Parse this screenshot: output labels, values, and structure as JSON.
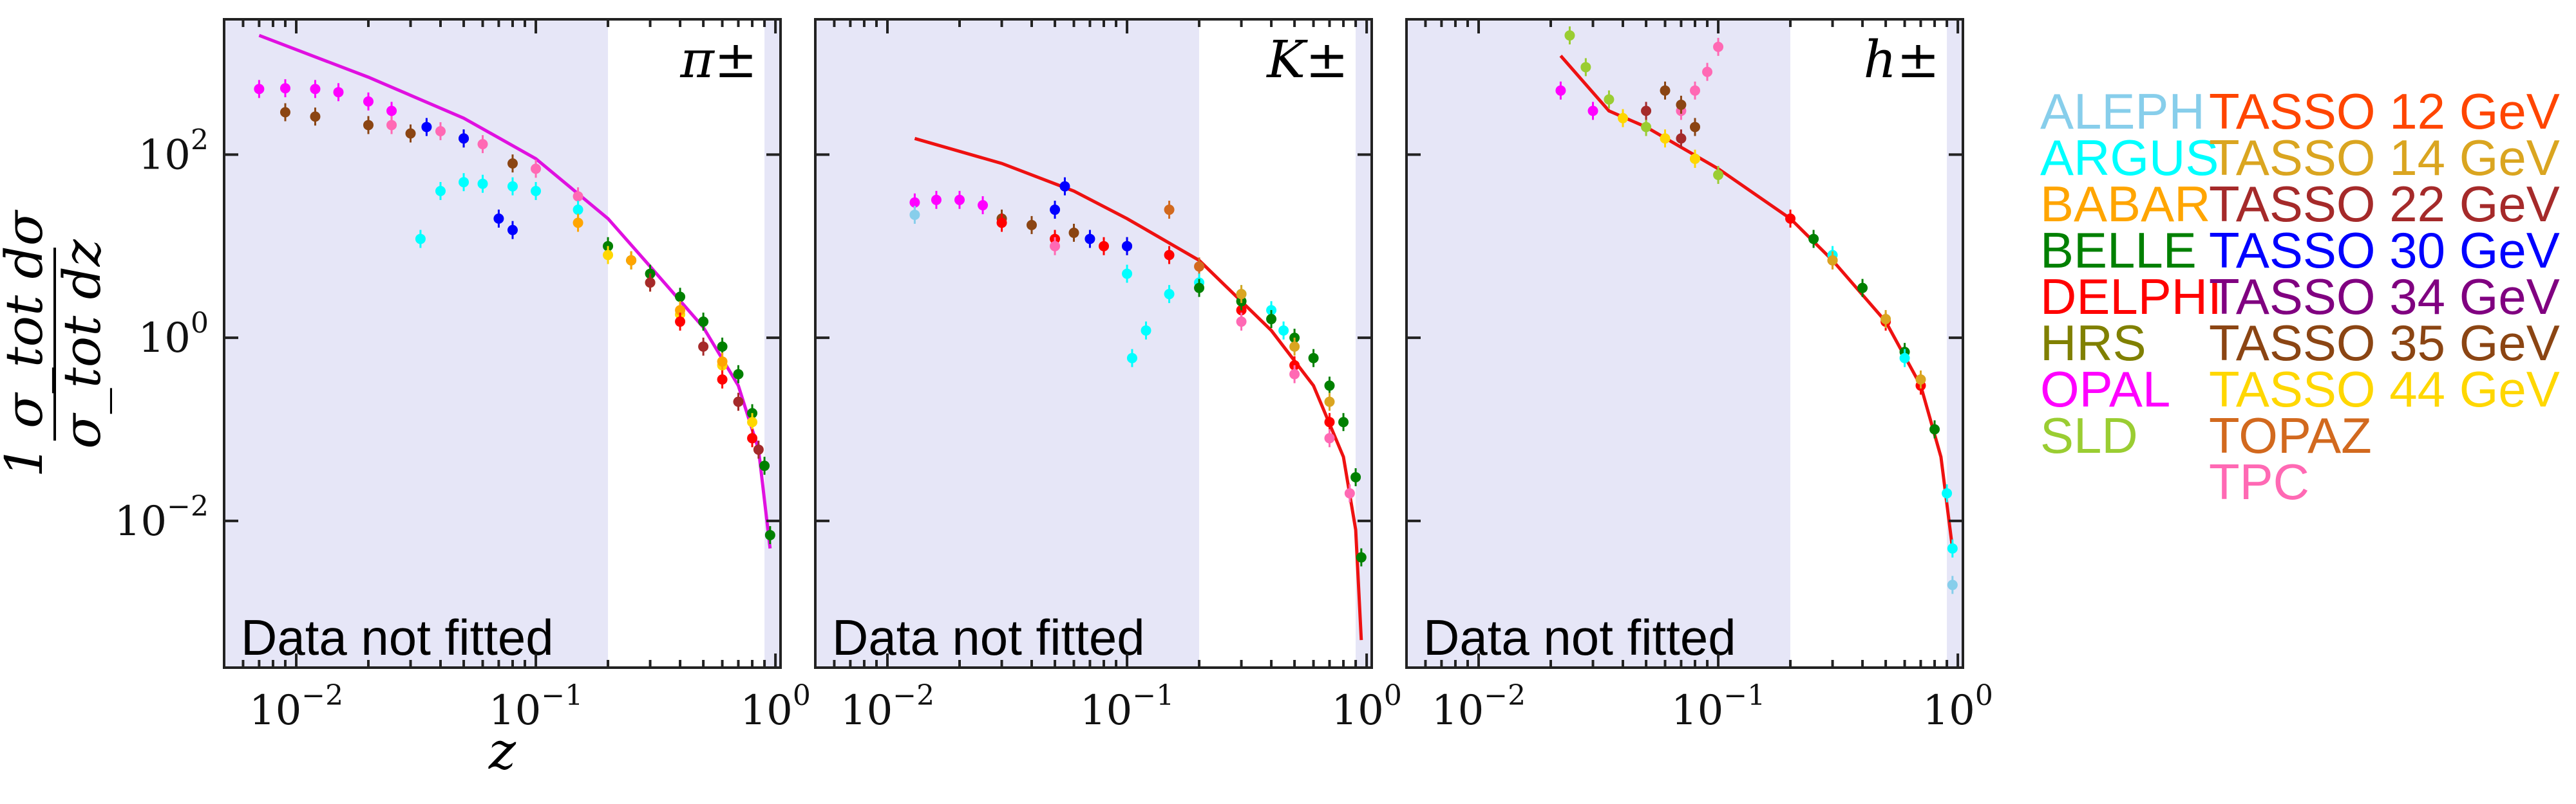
{
  "chart_data": {
    "type": "scatter",
    "x_scale": "log",
    "y_scale": "log",
    "xlim": [
      0.005,
      1.05
    ],
    "ylim": [
      0.00025,
      3000
    ],
    "xlabel": "z",
    "ylabel": "1/σ_tot dσ/dz",
    "x_ticks": [
      {
        "value": 0.01,
        "base": "10",
        "exp": "−2"
      },
      {
        "value": 0.1,
        "base": "10",
        "exp": "−1"
      },
      {
        "value": 1,
        "base": "10",
        "exp": "0"
      }
    ],
    "y_ticks": [
      {
        "value": 100,
        "base": "10",
        "exp": "2"
      },
      {
        "value": 1,
        "base": "10",
        "exp": "0"
      },
      {
        "value": 0.01,
        "base": "10",
        "exp": "−2"
      }
    ],
    "unfitted_region_note": "Data not fitted",
    "unfitted_ranges": [
      [
        0.005,
        0.2
      ],
      [
        0.9,
        1.05
      ]
    ],
    "panels": [
      {
        "name": "π±",
        "fit_curve": [
          [
            0.007,
            2000
          ],
          [
            0.02,
            700
          ],
          [
            0.05,
            250
          ],
          [
            0.1,
            90
          ],
          [
            0.2,
            20
          ],
          [
            0.3,
            6
          ],
          [
            0.5,
            1.3
          ],
          [
            0.7,
            0.3
          ],
          [
            0.85,
            0.06
          ],
          [
            0.95,
            0.005
          ]
        ],
        "series": [
          {
            "name": "OPAL",
            "points": [
              [
                0.007,
                520
              ],
              [
                0.009,
                530
              ],
              [
                0.012,
                520
              ],
              [
                0.015,
                480
              ],
              [
                0.02,
                380
              ],
              [
                0.025,
                300
              ]
            ]
          },
          {
            "name": "TASSO 35 GeV",
            "points": [
              [
                0.009,
                290
              ],
              [
                0.012,
                260
              ],
              [
                0.02,
                210
              ],
              [
                0.03,
                170
              ],
              [
                0.05,
                150
              ],
              [
                0.08,
                80
              ]
            ]
          },
          {
            "name": "TPC",
            "points": [
              [
                0.025,
                210
              ],
              [
                0.04,
                180
              ],
              [
                0.06,
                130
              ],
              [
                0.1,
                70
              ],
              [
                0.15,
                35
              ]
            ]
          },
          {
            "name": "ARGUS",
            "points": [
              [
                0.033,
                12
              ],
              [
                0.04,
                40
              ],
              [
                0.05,
                50
              ],
              [
                0.06,
                48
              ],
              [
                0.08,
                45
              ],
              [
                0.1,
                40
              ],
              [
                0.15,
                25
              ]
            ]
          },
          {
            "name": "TASSO 30 GeV",
            "points": [
              [
                0.035,
                200
              ],
              [
                0.05,
                150
              ],
              [
                0.07,
                20
              ],
              [
                0.08,
                15
              ]
            ]
          },
          {
            "name": "BELLE",
            "points": [
              [
                0.2,
                10
              ],
              [
                0.25,
                7
              ],
              [
                0.3,
                5
              ],
              [
                0.4,
                2.8
              ],
              [
                0.5,
                1.5
              ],
              [
                0.6,
                0.8
              ],
              [
                0.7,
                0.4
              ],
              [
                0.8,
                0.15
              ],
              [
                0.9,
                0.04
              ],
              [
                0.95,
                0.007
              ]
            ]
          },
          {
            "name": "TASSO 44 GeV",
            "points": [
              [
                0.2,
                8
              ],
              [
                0.3,
                4
              ],
              [
                0.4,
                1.8
              ],
              [
                0.6,
                0.5
              ],
              [
                0.8,
                0.12
              ]
            ]
          },
          {
            "name": "BABAR",
            "points": [
              [
                0.15,
                18
              ],
              [
                0.25,
                7
              ],
              [
                0.4,
                2
              ],
              [
                0.6,
                0.55
              ]
            ]
          },
          {
            "name": "TASSO 22 GeV",
            "points": [
              [
                0.3,
                4
              ],
              [
                0.5,
                0.8
              ],
              [
                0.7,
                0.2
              ],
              [
                0.85,
                0.06
              ]
            ]
          },
          {
            "name": "DELPHI",
            "points": [
              [
                0.4,
                1.5
              ],
              [
                0.6,
                0.35
              ],
              [
                0.8,
                0.08
              ]
            ]
          }
        ]
      },
      {
        "name": "K±",
        "fit_curve": [
          [
            0.013,
            150
          ],
          [
            0.03,
            80
          ],
          [
            0.06,
            40
          ],
          [
            0.1,
            20
          ],
          [
            0.2,
            7
          ],
          [
            0.4,
            1.2
          ],
          [
            0.6,
            0.3
          ],
          [
            0.8,
            0.05
          ],
          [
            0.9,
            0.008
          ],
          [
            0.95,
            0.0005
          ]
        ],
        "series": [
          {
            "name": "OPAL",
            "points": [
              [
                0.013,
                30
              ],
              [
                0.016,
                32
              ],
              [
                0.02,
                32
              ],
              [
                0.025,
                28
              ]
            ]
          },
          {
            "name": "ALEPH",
            "points": [
              [
                0.013,
                22
              ]
            ]
          },
          {
            "name": "TASSO 35 GeV",
            "points": [
              [
                0.03,
                20
              ],
              [
                0.04,
                17
              ],
              [
                0.06,
                14
              ],
              [
                0.1,
                10
              ]
            ]
          },
          {
            "name": "TASSO 30 GeV",
            "points": [
              [
                0.05,
                25
              ],
              [
                0.055,
                45
              ],
              [
                0.07,
                12
              ],
              [
                0.1,
                10
              ]
            ]
          },
          {
            "name": "DELPHI",
            "points": [
              [
                0.03,
                18
              ],
              [
                0.05,
                12
              ],
              [
                0.08,
                10
              ],
              [
                0.15,
                8
              ],
              [
                0.3,
                2
              ],
              [
                0.5,
                0.5
              ],
              [
                0.7,
                0.12
              ]
            ]
          },
          {
            "name": "TOPAZ",
            "points": [
              [
                0.15,
                25
              ],
              [
                0.2,
                6
              ]
            ]
          },
          {
            "name": "ARGUS",
            "points": [
              [
                0.1,
                5
              ],
              [
                0.105,
                0.6
              ],
              [
                0.12,
                1.2
              ],
              [
                0.15,
                3
              ],
              [
                0.2,
                4
              ],
              [
                0.3,
                3
              ],
              [
                0.4,
                2
              ],
              [
                0.45,
                1.2
              ]
            ]
          },
          {
            "name": "BELLE",
            "points": [
              [
                0.2,
                3.5
              ],
              [
                0.3,
                2.5
              ],
              [
                0.4,
                1.6
              ],
              [
                0.5,
                1
              ],
              [
                0.6,
                0.6
              ],
              [
                0.7,
                0.3
              ],
              [
                0.8,
                0.12
              ],
              [
                0.9,
                0.03
              ],
              [
                0.95,
                0.004
              ]
            ]
          },
          {
            "name": "TPC",
            "points": [
              [
                0.05,
                10
              ],
              [
                0.3,
                1.5
              ],
              [
                0.5,
                0.4
              ],
              [
                0.7,
                0.08
              ],
              [
                0.85,
                0.02
              ]
            ]
          },
          {
            "name": "TASSO 14 GeV",
            "points": [
              [
                0.3,
                3
              ],
              [
                0.5,
                0.8
              ],
              [
                0.7,
                0.2
              ]
            ]
          }
        ]
      },
      {
        "name": "h±",
        "fit_curve": [
          [
            0.022,
            1200
          ],
          [
            0.035,
            300
          ],
          [
            0.05,
            200
          ],
          [
            0.1,
            70
          ],
          [
            0.2,
            20
          ],
          [
            0.3,
            7
          ],
          [
            0.5,
            1.5
          ],
          [
            0.7,
            0.3
          ],
          [
            0.85,
            0.05
          ],
          [
            0.95,
            0.005
          ]
        ],
        "series": [
          {
            "name": "OPAL",
            "points": [
              [
                0.022,
                500
              ],
              [
                0.03,
                300
              ]
            ]
          },
          {
            "name": "SLD",
            "points": [
              [
                0.024,
                2000
              ],
              [
                0.028,
                900
              ],
              [
                0.035,
                400
              ],
              [
                0.05,
                200
              ],
              [
                0.08,
                90
              ],
              [
                0.1,
                60
              ]
            ]
          },
          {
            "name": "TPC",
            "points": [
              [
                0.07,
                300
              ],
              [
                0.08,
                500
              ],
              [
                0.09,
                800
              ],
              [
                0.1,
                1500
              ]
            ]
          },
          {
            "name": "TASSO 35 GeV",
            "points": [
              [
                0.06,
                500
              ],
              [
                0.07,
                350
              ],
              [
                0.08,
                200
              ]
            ]
          },
          {
            "name": "TASSO 44 GeV",
            "points": [
              [
                0.04,
                250
              ],
              [
                0.06,
                150
              ],
              [
                0.08,
                90
              ]
            ]
          },
          {
            "name": "TASSO 22 GeV",
            "points": [
              [
                0.05,
                300
              ],
              [
                0.07,
                150
              ]
            ]
          },
          {
            "name": "DELPHI",
            "points": [
              [
                0.2,
                20
              ],
              [
                0.3,
                7
              ],
              [
                0.5,
                1.5
              ],
              [
                0.7,
                0.3
              ]
            ]
          },
          {
            "name": "BELLE",
            "points": [
              [
                0.25,
                12
              ],
              [
                0.4,
                3.5
              ],
              [
                0.6,
                0.7
              ],
              [
                0.8,
                0.1
              ]
            ]
          },
          {
            "name": "ARGUS",
            "points": [
              [
                0.3,
                8
              ],
              [
                0.6,
                0.6
              ],
              [
                0.9,
                0.02
              ],
              [
                0.95,
                0.005
              ]
            ]
          },
          {
            "name": "TASSO 14 GeV",
            "points": [
              [
                0.3,
                7
              ],
              [
                0.5,
                1.6
              ],
              [
                0.7,
                0.35
              ]
            ]
          },
          {
            "name": "ALEPH",
            "points": [
              [
                0.95,
                0.002
              ]
            ]
          }
        ]
      }
    ],
    "legend": [
      {
        "label": "ALEPH",
        "color": "#87ceeb"
      },
      {
        "label": "ARGUS",
        "color": "#00ffff"
      },
      {
        "label": "BABAR",
        "color": "#ffa500"
      },
      {
        "label": "BELLE",
        "color": "#008000"
      },
      {
        "label": "DELPHI",
        "color": "#ff0000"
      },
      {
        "label": "HRS",
        "color": "#808000"
      },
      {
        "label": "OPAL",
        "color": "#ff00ff"
      },
      {
        "label": "SLD",
        "color": "#9acd32"
      },
      {
        "label": "TASSO 12 GeV",
        "color": "#ff4500"
      },
      {
        "label": "TASSO 14 GeV",
        "color": "#daa520"
      },
      {
        "label": "TASSO 22 GeV",
        "color": "#a52a2a"
      },
      {
        "label": "TASSO 30 GeV",
        "color": "#0000ff"
      },
      {
        "label": "TASSO 34 GeV",
        "color": "#800080"
      },
      {
        "label": "TASSO 35 GeV",
        "color": "#8b4513"
      },
      {
        "label": "TASSO 44 GeV",
        "color": "#ffd700"
      },
      {
        "label": "TOPAZ",
        "color": "#d2691e"
      },
      {
        "label": "TPC",
        "color": "#ff69b4"
      }
    ],
    "fit_colors": [
      "#e010e0",
      "#ee1111",
      "#ee1111"
    ],
    "shade_color": "#e6e6f7"
  }
}
